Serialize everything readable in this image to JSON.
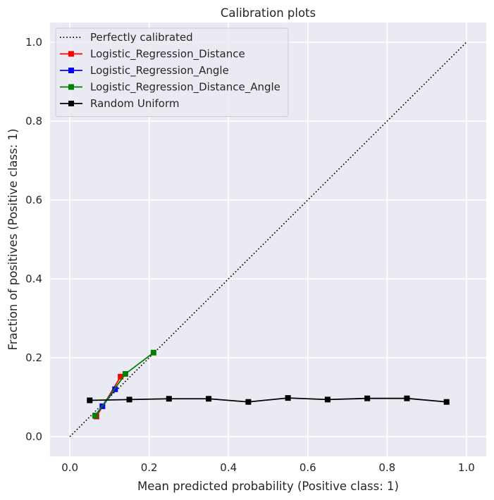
{
  "chart_data": {
    "type": "line",
    "title": "Calibration plots",
    "xlabel": "Mean predicted probability (Positive class: 1)",
    "ylabel": "Fraction of positives (Positive class: 1)",
    "xlim": [
      -0.05,
      1.05
    ],
    "ylim": [
      -0.05,
      1.05
    ],
    "xticks": [
      0.0,
      0.2,
      0.4,
      0.6,
      0.8,
      1.0
    ],
    "yticks": [
      0.0,
      0.2,
      0.4,
      0.6,
      0.8,
      1.0
    ],
    "xtick_labels": [
      "0.0",
      "0.2",
      "0.4",
      "0.6",
      "0.8",
      "1.0"
    ],
    "ytick_labels": [
      "0.0",
      "0.2",
      "0.4",
      "0.6",
      "0.8",
      "1.0"
    ],
    "grid": true,
    "legend_position": "top-left",
    "series": [
      {
        "name": "Perfectly calibrated",
        "color": "#000000",
        "style": "dotted",
        "marker": "none",
        "x": [
          0.0,
          1.0
        ],
        "y": [
          0.0,
          1.0
        ]
      },
      {
        "name": "Logistic_Regression_Distance",
        "color": "#ff0000",
        "style": "solid",
        "marker": "square",
        "x": [
          0.067,
          0.128
        ],
        "y": [
          0.051,
          0.152
        ]
      },
      {
        "name": "Logistic_Regression_Angle",
        "color": "#0000ff",
        "style": "solid",
        "marker": "square",
        "x": [
          0.064,
          0.082,
          0.114
        ],
        "y": [
          0.053,
          0.077,
          0.12
        ]
      },
      {
        "name": "Logistic_Regression_Distance_Angle",
        "color": "#008000",
        "style": "solid",
        "marker": "square",
        "x": [
          0.064,
          0.14,
          0.211
        ],
        "y": [
          0.053,
          0.159,
          0.213
        ]
      },
      {
        "name": "Random Uniform",
        "color": "#000000",
        "style": "solid",
        "marker": "square",
        "x": [
          0.05,
          0.15,
          0.25,
          0.35,
          0.45,
          0.55,
          0.65,
          0.75,
          0.85,
          0.95
        ],
        "y": [
          0.092,
          0.094,
          0.096,
          0.096,
          0.088,
          0.098,
          0.094,
          0.097,
          0.097,
          0.088
        ]
      }
    ]
  }
}
